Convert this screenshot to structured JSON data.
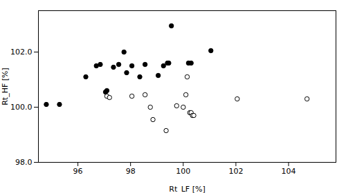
{
  "chart_data": {
    "type": "scatter",
    "xlabel": "Rt_LF [%]",
    "ylabel": "Rt_HF [%]",
    "xlim": [
      94.5,
      105.8
    ],
    "ylim": [
      98.0,
      103.5
    ],
    "xticks": [
      96,
      98,
      100,
      102,
      104
    ],
    "yticks": [
      98,
      100,
      102
    ],
    "grid": false,
    "series": [
      {
        "color": "#000000",
        "marker": "filled_circle",
        "x": [
          94.8,
          95.3,
          96.3,
          96.7,
          96.85,
          97.05,
          97.1,
          97.35,
          97.55,
          97.75,
          97.85,
          98.05,
          98.35,
          98.55,
          99.05,
          99.25,
          99.4,
          99.45,
          99.55,
          100.2,
          100.3,
          101.05
        ],
        "values": [
          100.1,
          100.1,
          101.1,
          101.5,
          101.55,
          100.55,
          100.6,
          101.45,
          101.55,
          102.0,
          101.25,
          101.5,
          101.1,
          101.55,
          101.15,
          101.5,
          101.6,
          101.6,
          102.95,
          101.6,
          101.6,
          102.05
        ]
      },
      {
        "color": "#000000",
        "marker": "open_circle",
        "x": [
          97.1,
          97.2,
          98.05,
          98.55,
          98.75,
          98.85,
          99.35,
          99.75,
          100.0,
          100.1,
          100.15,
          100.25,
          100.3,
          100.35,
          100.4,
          102.05,
          104.7
        ],
        "values": [
          100.4,
          100.35,
          100.4,
          100.45,
          100.0,
          99.55,
          99.15,
          100.05,
          100.0,
          100.45,
          101.1,
          99.8,
          99.8,
          99.7,
          99.7,
          100.3,
          100.3
        ]
      }
    ]
  }
}
